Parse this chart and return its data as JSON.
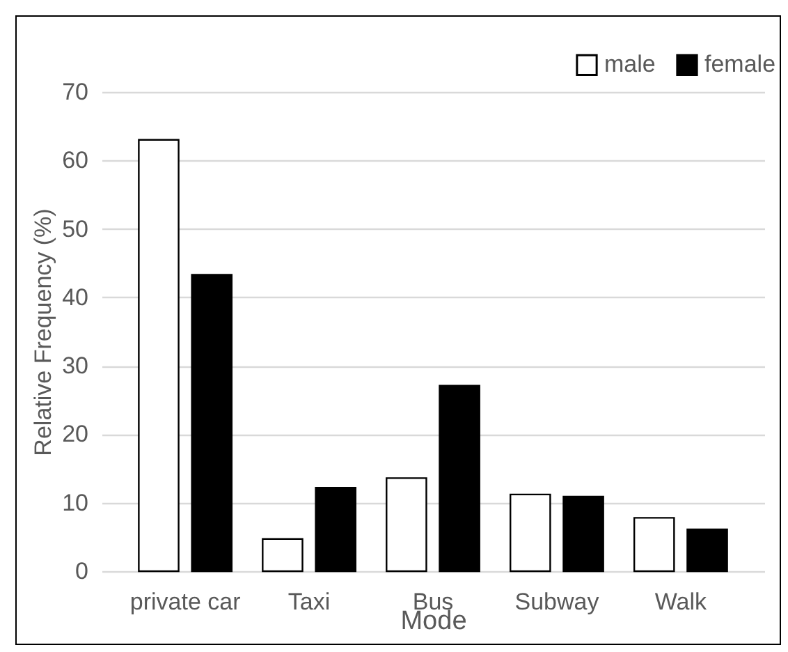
{
  "chart_data": {
    "type": "bar",
    "xlabel": "Mode",
    "ylabel": "Relative Frequency (%)",
    "categories": [
      "private car",
      "Taxi",
      "Bus",
      "Subway",
      "Walk"
    ],
    "series": [
      {
        "name": "male",
        "color": "#ffffff",
        "values": [
          63,
          4.7,
          13.6,
          11.2,
          7.8
        ]
      },
      {
        "name": "female",
        "color": "#000000",
        "values": [
          43.3,
          12.2,
          27.1,
          10.9,
          6.1
        ]
      }
    ],
    "ylim": [
      0,
      70
    ],
    "yticks": [
      0,
      10,
      20,
      30,
      40,
      50,
      60,
      70
    ],
    "grid": "y",
    "legend": "top right"
  }
}
